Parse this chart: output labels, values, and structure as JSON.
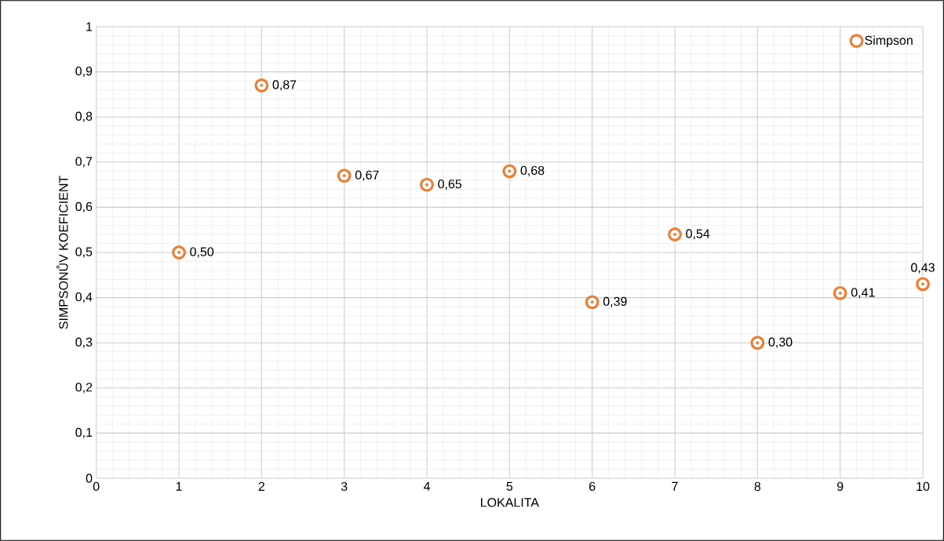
{
  "chart_data": {
    "type": "scatter",
    "xlabel": "LOKALITA",
    "ylabel": "SIMPSONŮV KOEFICIENT",
    "x": [
      1,
      2,
      3,
      4,
      5,
      6,
      7,
      8,
      9,
      10
    ],
    "series": [
      {
        "name": "Simpson",
        "color": "#ed7d31",
        "values": [
          0.5,
          0.87,
          0.67,
          0.65,
          0.68,
          0.39,
          0.54,
          0.3,
          0.41,
          0.43
        ]
      }
    ],
    "value_labels": [
      "0,50",
      "0,87",
      "0,67",
      "0,65",
      "0,68",
      "0,39",
      "0,54",
      "0,30",
      "0,41",
      "0,43"
    ],
    "xlim": [
      0,
      10
    ],
    "xticks": [
      0,
      1,
      2,
      3,
      4,
      5,
      6,
      7,
      8,
      9,
      10
    ],
    "ylim": [
      0,
      1
    ],
    "yticks": [
      0,
      {
        "value": 0.1,
        "label": "0,1"
      },
      {
        "value": 0.2,
        "label": "0,2"
      },
      {
        "value": 0.3,
        "label": "0,3"
      },
      {
        "value": 0.4,
        "label": "0,4"
      },
      {
        "value": 0.5,
        "label": "0,5"
      },
      {
        "value": 0.6,
        "label": "0,6"
      },
      {
        "value": 0.7,
        "label": "0,7"
      },
      {
        "value": 0.8,
        "label": "0,8"
      },
      {
        "value": 0.9,
        "label": "0,9"
      },
      1
    ],
    "grid": true,
    "legend": "top right",
    "marker": "circle"
  }
}
